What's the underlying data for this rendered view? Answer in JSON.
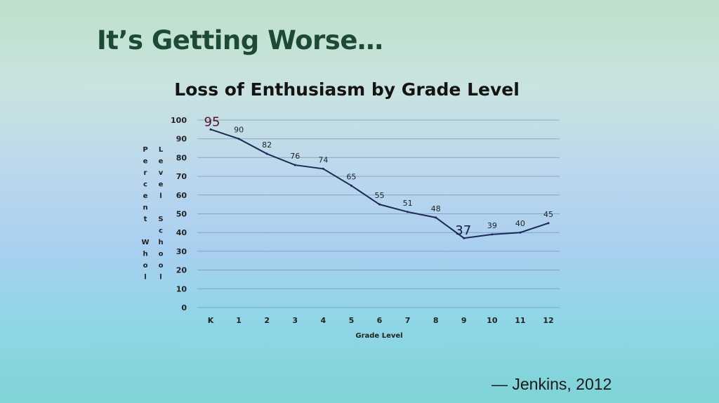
{
  "slide": {
    "title": "It’s Getting Worse…",
    "citation": "— Jenkins, 2012"
  },
  "chart_data": {
    "type": "line",
    "title": "Loss of Enthusiasm by Grade Level",
    "xlabel": "Grade Level",
    "ylabel": "Percent Whole School",
    "ylabel_columns": [
      "Percent Whol",
      "Level School"
    ],
    "categories": [
      "K",
      "1",
      "2",
      "3",
      "4",
      "5",
      "6",
      "7",
      "8",
      "9",
      "10",
      "11",
      "12"
    ],
    "values": [
      95,
      90,
      82,
      76,
      74,
      65,
      55,
      51,
      48,
      37,
      39,
      40,
      45
    ],
    "data_labels": [
      "95",
      "90",
      "82",
      "76",
      "74",
      "65",
      "55",
      "51",
      "48",
      "37",
      "39",
      "40",
      "45"
    ],
    "emphasized_labels": [
      0,
      9
    ],
    "ylim": [
      0,
      100
    ],
    "yticks": [
      0,
      10,
      20,
      30,
      40,
      50,
      60,
      70,
      80,
      90,
      100
    ],
    "grid": true,
    "colors": {
      "line": "#1c2a55",
      "grid": "#6a7f9a",
      "axis_text": "#222222",
      "emphasis_label": "#5a1230"
    }
  }
}
